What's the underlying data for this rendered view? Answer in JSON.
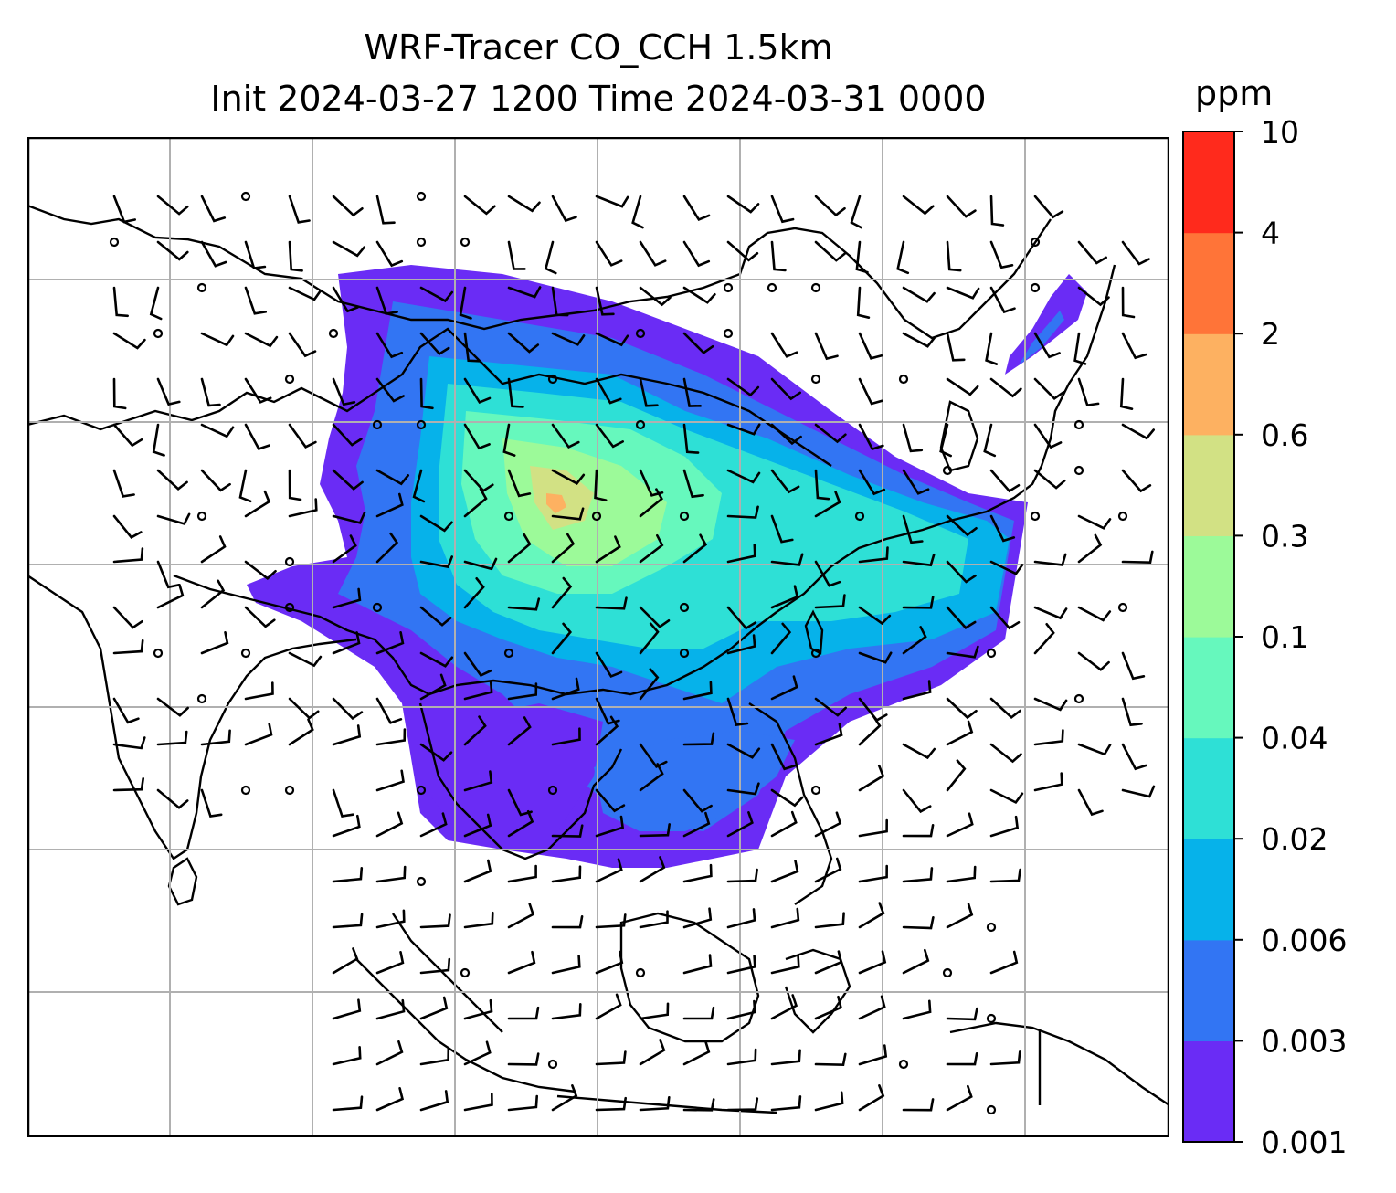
{
  "title": {
    "line1": "WRF-Tracer CO_CCH 1.5km",
    "line2": "Init 2024-03-27 1200 Time 2024-03-31 0000"
  },
  "colorbar": {
    "unit": "ppm",
    "levels": [
      "0.001",
      "0.003",
      "0.006",
      "0.02",
      "0.04",
      "0.1",
      "0.3",
      "0.6",
      "2",
      "4",
      "10"
    ],
    "colors": [
      "#6a2cf5",
      "#3275f3",
      "#06b2ea",
      "#2ee0d6",
      "#66f8bd",
      "#9cfa99",
      "#d2e184",
      "#fdb161",
      "#ff7438",
      "#ff2a1c"
    ]
  },
  "map": {
    "grid": "on",
    "gridlines_x": 7,
    "gridlines_y": 6,
    "features": [
      "coastlines",
      "country-borders",
      "wind-barbs",
      "tracer-shading"
    ]
  }
}
